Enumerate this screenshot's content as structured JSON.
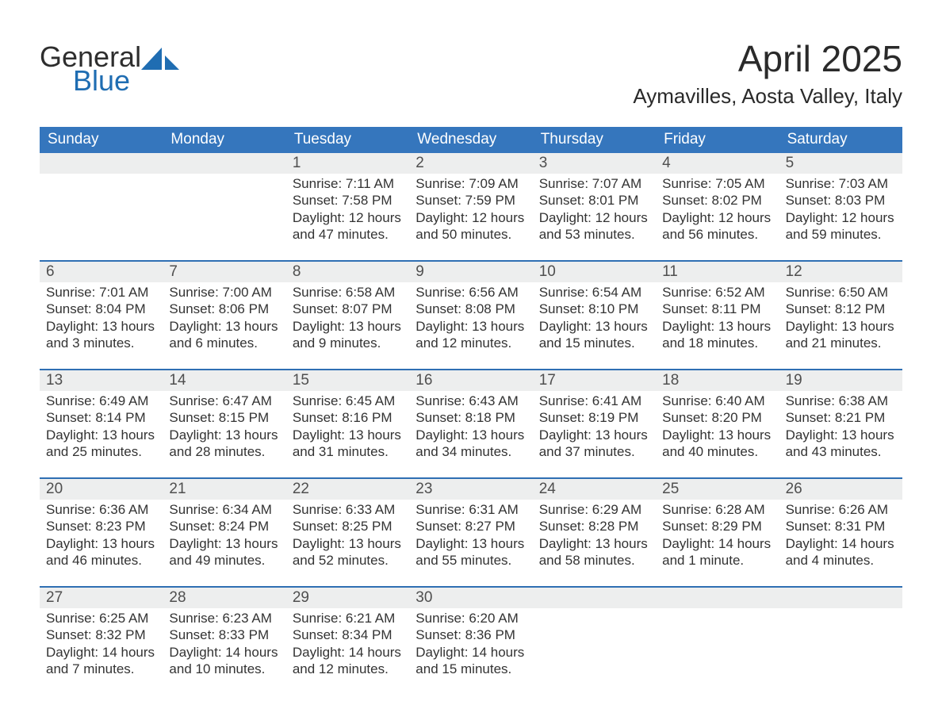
{
  "logo": {
    "text_top": "General",
    "text_bottom": "Blue"
  },
  "title": {
    "month": "April 2025",
    "location": "Aymavilles, Aosta Valley, Italy"
  },
  "colors": {
    "header_blue": "#3576bd",
    "row_stripe": "#edeeee",
    "line_blue": "#2f6fb3",
    "text": "#333333",
    "logo_dark": "#2e2e2e",
    "logo_blue": "#1f6db2",
    "background": "#ffffff"
  },
  "typography": {
    "month_fontsize_pt": 34,
    "location_fontsize_pt": 20,
    "dow_fontsize_pt": 14,
    "daynum_fontsize_pt": 14,
    "body_fontsize_pt": 13,
    "font_family": "Segoe UI / Arial"
  },
  "days_of_week": [
    "Sunday",
    "Monday",
    "Tuesday",
    "Wednesday",
    "Thursday",
    "Friday",
    "Saturday"
  ],
  "weeks": [
    [
      null,
      null,
      {
        "n": "1",
        "sunrise": "Sunrise: 7:11 AM",
        "sunset": "Sunset: 7:58 PM",
        "day1": "Daylight: 12 hours",
        "day2": "and 47 minutes."
      },
      {
        "n": "2",
        "sunrise": "Sunrise: 7:09 AM",
        "sunset": "Sunset: 7:59 PM",
        "day1": "Daylight: 12 hours",
        "day2": "and 50 minutes."
      },
      {
        "n": "3",
        "sunrise": "Sunrise: 7:07 AM",
        "sunset": "Sunset: 8:01 PM",
        "day1": "Daylight: 12 hours",
        "day2": "and 53 minutes."
      },
      {
        "n": "4",
        "sunrise": "Sunrise: 7:05 AM",
        "sunset": "Sunset: 8:02 PM",
        "day1": "Daylight: 12 hours",
        "day2": "and 56 minutes."
      },
      {
        "n": "5",
        "sunrise": "Sunrise: 7:03 AM",
        "sunset": "Sunset: 8:03 PM",
        "day1": "Daylight: 12 hours",
        "day2": "and 59 minutes."
      }
    ],
    [
      {
        "n": "6",
        "sunrise": "Sunrise: 7:01 AM",
        "sunset": "Sunset: 8:04 PM",
        "day1": "Daylight: 13 hours",
        "day2": "and 3 minutes."
      },
      {
        "n": "7",
        "sunrise": "Sunrise: 7:00 AM",
        "sunset": "Sunset: 8:06 PM",
        "day1": "Daylight: 13 hours",
        "day2": "and 6 minutes."
      },
      {
        "n": "8",
        "sunrise": "Sunrise: 6:58 AM",
        "sunset": "Sunset: 8:07 PM",
        "day1": "Daylight: 13 hours",
        "day2": "and 9 minutes."
      },
      {
        "n": "9",
        "sunrise": "Sunrise: 6:56 AM",
        "sunset": "Sunset: 8:08 PM",
        "day1": "Daylight: 13 hours",
        "day2": "and 12 minutes."
      },
      {
        "n": "10",
        "sunrise": "Sunrise: 6:54 AM",
        "sunset": "Sunset: 8:10 PM",
        "day1": "Daylight: 13 hours",
        "day2": "and 15 minutes."
      },
      {
        "n": "11",
        "sunrise": "Sunrise: 6:52 AM",
        "sunset": "Sunset: 8:11 PM",
        "day1": "Daylight: 13 hours",
        "day2": "and 18 minutes."
      },
      {
        "n": "12",
        "sunrise": "Sunrise: 6:50 AM",
        "sunset": "Sunset: 8:12 PM",
        "day1": "Daylight: 13 hours",
        "day2": "and 21 minutes."
      }
    ],
    [
      {
        "n": "13",
        "sunrise": "Sunrise: 6:49 AM",
        "sunset": "Sunset: 8:14 PM",
        "day1": "Daylight: 13 hours",
        "day2": "and 25 minutes."
      },
      {
        "n": "14",
        "sunrise": "Sunrise: 6:47 AM",
        "sunset": "Sunset: 8:15 PM",
        "day1": "Daylight: 13 hours",
        "day2": "and 28 minutes."
      },
      {
        "n": "15",
        "sunrise": "Sunrise: 6:45 AM",
        "sunset": "Sunset: 8:16 PM",
        "day1": "Daylight: 13 hours",
        "day2": "and 31 minutes."
      },
      {
        "n": "16",
        "sunrise": "Sunrise: 6:43 AM",
        "sunset": "Sunset: 8:18 PM",
        "day1": "Daylight: 13 hours",
        "day2": "and 34 minutes."
      },
      {
        "n": "17",
        "sunrise": "Sunrise: 6:41 AM",
        "sunset": "Sunset: 8:19 PM",
        "day1": "Daylight: 13 hours",
        "day2": "and 37 minutes."
      },
      {
        "n": "18",
        "sunrise": "Sunrise: 6:40 AM",
        "sunset": "Sunset: 8:20 PM",
        "day1": "Daylight: 13 hours",
        "day2": "and 40 minutes."
      },
      {
        "n": "19",
        "sunrise": "Sunrise: 6:38 AM",
        "sunset": "Sunset: 8:21 PM",
        "day1": "Daylight: 13 hours",
        "day2": "and 43 minutes."
      }
    ],
    [
      {
        "n": "20",
        "sunrise": "Sunrise: 6:36 AM",
        "sunset": "Sunset: 8:23 PM",
        "day1": "Daylight: 13 hours",
        "day2": "and 46 minutes."
      },
      {
        "n": "21",
        "sunrise": "Sunrise: 6:34 AM",
        "sunset": "Sunset: 8:24 PM",
        "day1": "Daylight: 13 hours",
        "day2": "and 49 minutes."
      },
      {
        "n": "22",
        "sunrise": "Sunrise: 6:33 AM",
        "sunset": "Sunset: 8:25 PM",
        "day1": "Daylight: 13 hours",
        "day2": "and 52 minutes."
      },
      {
        "n": "23",
        "sunrise": "Sunrise: 6:31 AM",
        "sunset": "Sunset: 8:27 PM",
        "day1": "Daylight: 13 hours",
        "day2": "and 55 minutes."
      },
      {
        "n": "24",
        "sunrise": "Sunrise: 6:29 AM",
        "sunset": "Sunset: 8:28 PM",
        "day1": "Daylight: 13 hours",
        "day2": "and 58 minutes."
      },
      {
        "n": "25",
        "sunrise": "Sunrise: 6:28 AM",
        "sunset": "Sunset: 8:29 PM",
        "day1": "Daylight: 14 hours",
        "day2": "and 1 minute."
      },
      {
        "n": "26",
        "sunrise": "Sunrise: 6:26 AM",
        "sunset": "Sunset: 8:31 PM",
        "day1": "Daylight: 14 hours",
        "day2": "and 4 minutes."
      }
    ],
    [
      {
        "n": "27",
        "sunrise": "Sunrise: 6:25 AM",
        "sunset": "Sunset: 8:32 PM",
        "day1": "Daylight: 14 hours",
        "day2": "and 7 minutes."
      },
      {
        "n": "28",
        "sunrise": "Sunrise: 6:23 AM",
        "sunset": "Sunset: 8:33 PM",
        "day1": "Daylight: 14 hours",
        "day2": "and 10 minutes."
      },
      {
        "n": "29",
        "sunrise": "Sunrise: 6:21 AM",
        "sunset": "Sunset: 8:34 PM",
        "day1": "Daylight: 14 hours",
        "day2": "and 12 minutes."
      },
      {
        "n": "30",
        "sunrise": "Sunrise: 6:20 AM",
        "sunset": "Sunset: 8:36 PM",
        "day1": "Daylight: 14 hours",
        "day2": "and 15 minutes."
      },
      null,
      null,
      null
    ]
  ]
}
